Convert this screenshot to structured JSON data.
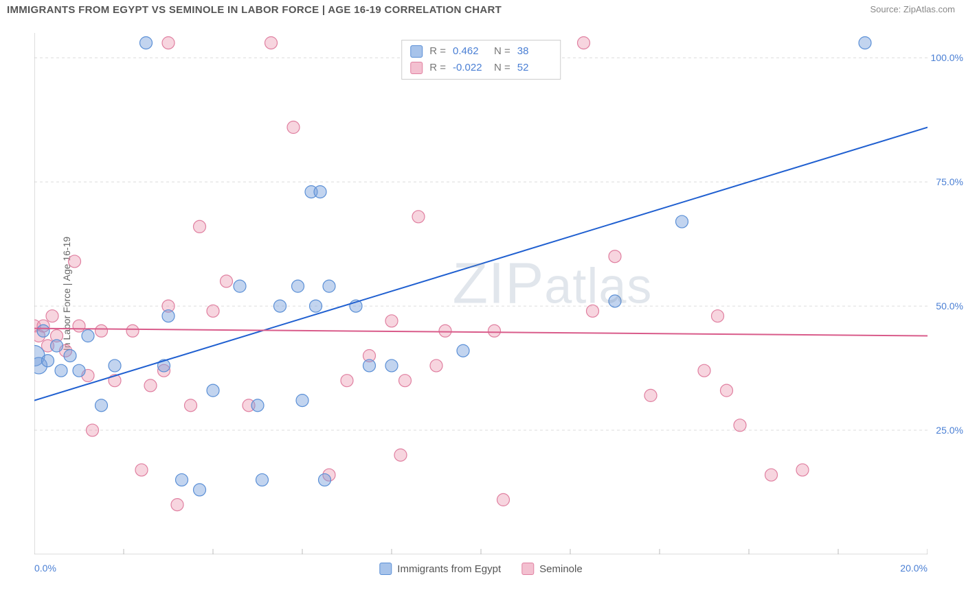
{
  "header": {
    "title": "IMMIGRANTS FROM EGYPT VS SEMINOLE IN LABOR FORCE | AGE 16-19 CORRELATION CHART",
    "source": "Source: ZipAtlas.com"
  },
  "watermark": {
    "pre": "ZIP",
    "post": "atlas"
  },
  "chart": {
    "type": "scatter",
    "background_color": "#ffffff",
    "grid_color": "#dcdcdc",
    "axis_color": "#bbbbbb",
    "y_axis_label": "In Labor Force | Age 16-19",
    "label_fontsize": 14,
    "label_color": "#666666",
    "tick_color": "#4a7fd4",
    "tick_fontsize": 14,
    "xlim": [
      0,
      20
    ],
    "ylim": [
      0,
      105
    ],
    "x_ticks": [
      0,
      2,
      4,
      6,
      8,
      10,
      12,
      14,
      16,
      18,
      20
    ],
    "x_tick_labels": {
      "0": "0.0%",
      "20": "20.0%"
    },
    "y_ticks": [
      25,
      50,
      75,
      100
    ],
    "y_tick_labels": {
      "25": "25.0%",
      "50": "50.0%",
      "75": "75.0%",
      "100": "100.0%"
    },
    "marker_radius_default": 9,
    "marker_stroke_width": 1.2,
    "series": [
      {
        "name": "Immigrants from Egypt",
        "fill_color": "rgba(120,160,220,0.45)",
        "stroke_color": "#5a8fd6",
        "legend_swatch_fill": "#a7c3ea",
        "legend_swatch_stroke": "#5a8fd6",
        "r": 0.462,
        "n": 38,
        "trend": {
          "color": "#1f5fd0",
          "width": 2,
          "x1": 0,
          "y1": 31,
          "x2": 20,
          "y2": 86
        },
        "points": [
          {
            "x": 0.0,
            "y": 40,
            "r": 15
          },
          {
            "x": 0.1,
            "y": 38,
            "r": 12
          },
          {
            "x": 0.2,
            "y": 45
          },
          {
            "x": 0.3,
            "y": 39
          },
          {
            "x": 0.5,
            "y": 42
          },
          {
            "x": 0.6,
            "y": 37
          },
          {
            "x": 0.8,
            "y": 40
          },
          {
            "x": 1.0,
            "y": 37
          },
          {
            "x": 1.2,
            "y": 44
          },
          {
            "x": 1.5,
            "y": 30
          },
          {
            "x": 1.8,
            "y": 38
          },
          {
            "x": 2.5,
            "y": 103
          },
          {
            "x": 2.9,
            "y": 38
          },
          {
            "x": 3.0,
            "y": 48
          },
          {
            "x": 3.3,
            "y": 15
          },
          {
            "x": 3.7,
            "y": 13
          },
          {
            "x": 4.0,
            "y": 33
          },
          {
            "x": 4.6,
            "y": 54
          },
          {
            "x": 5.0,
            "y": 30
          },
          {
            "x": 5.1,
            "y": 15
          },
          {
            "x": 5.5,
            "y": 50
          },
          {
            "x": 5.9,
            "y": 54
          },
          {
            "x": 6.0,
            "y": 31
          },
          {
            "x": 6.2,
            "y": 73
          },
          {
            "x": 6.3,
            "y": 50
          },
          {
            "x": 6.4,
            "y": 73
          },
          {
            "x": 6.5,
            "y": 15
          },
          {
            "x": 6.6,
            "y": 54
          },
          {
            "x": 7.2,
            "y": 50
          },
          {
            "x": 7.5,
            "y": 38
          },
          {
            "x": 8.0,
            "y": 38
          },
          {
            "x": 9.6,
            "y": 41
          },
          {
            "x": 13.0,
            "y": 51
          },
          {
            "x": 14.5,
            "y": 67
          },
          {
            "x": 18.6,
            "y": 103
          }
        ]
      },
      {
        "name": "Seminole",
        "fill_color": "rgba(235,150,175,0.40)",
        "stroke_color": "#e07fa0",
        "legend_swatch_fill": "#f3c0d0",
        "legend_swatch_stroke": "#e07fa0",
        "r": -0.022,
        "n": 52,
        "trend": {
          "color": "#d95b8a",
          "width": 2,
          "x1": 0,
          "y1": 45.5,
          "x2": 20,
          "y2": 44
        },
        "points": [
          {
            "x": 0.0,
            "y": 46
          },
          {
            "x": 0.1,
            "y": 44
          },
          {
            "x": 0.2,
            "y": 46
          },
          {
            "x": 0.3,
            "y": 42
          },
          {
            "x": 0.4,
            "y": 48
          },
          {
            "x": 0.5,
            "y": 44
          },
          {
            "x": 0.7,
            "y": 41
          },
          {
            "x": 0.9,
            "y": 59
          },
          {
            "x": 1.0,
            "y": 46
          },
          {
            "x": 1.2,
            "y": 36
          },
          {
            "x": 1.3,
            "y": 25
          },
          {
            "x": 1.5,
            "y": 45
          },
          {
            "x": 1.8,
            "y": 35
          },
          {
            "x": 2.2,
            "y": 45
          },
          {
            "x": 2.4,
            "y": 17
          },
          {
            "x": 2.6,
            "y": 34
          },
          {
            "x": 2.9,
            "y": 37
          },
          {
            "x": 3.0,
            "y": 103
          },
          {
            "x": 3.0,
            "y": 50
          },
          {
            "x": 3.2,
            "y": 10
          },
          {
            "x": 3.5,
            "y": 30
          },
          {
            "x": 3.7,
            "y": 66
          },
          {
            "x": 4.0,
            "y": 49
          },
          {
            "x": 4.3,
            "y": 55
          },
          {
            "x": 4.8,
            "y": 30
          },
          {
            "x": 5.3,
            "y": 103
          },
          {
            "x": 5.8,
            "y": 86
          },
          {
            "x": 6.6,
            "y": 16
          },
          {
            "x": 7.0,
            "y": 35
          },
          {
            "x": 7.5,
            "y": 40
          },
          {
            "x": 8.0,
            "y": 47
          },
          {
            "x": 8.2,
            "y": 20
          },
          {
            "x": 8.3,
            "y": 35
          },
          {
            "x": 8.6,
            "y": 68
          },
          {
            "x": 9.0,
            "y": 38
          },
          {
            "x": 9.2,
            "y": 45
          },
          {
            "x": 10.3,
            "y": 45
          },
          {
            "x": 10.5,
            "y": 11
          },
          {
            "x": 12.3,
            "y": 103
          },
          {
            "x": 12.5,
            "y": 49
          },
          {
            "x": 13.0,
            "y": 60
          },
          {
            "x": 13.8,
            "y": 32
          },
          {
            "x": 15.0,
            "y": 37
          },
          {
            "x": 15.3,
            "y": 48
          },
          {
            "x": 15.5,
            "y": 33
          },
          {
            "x": 15.8,
            "y": 26
          },
          {
            "x": 16.5,
            "y": 16
          },
          {
            "x": 17.2,
            "y": 17
          }
        ]
      }
    ],
    "legend_top": {
      "r_label": "R =",
      "n_label": "N ="
    },
    "legend_bottom": [
      "Immigrants from Egypt",
      "Seminole"
    ]
  }
}
